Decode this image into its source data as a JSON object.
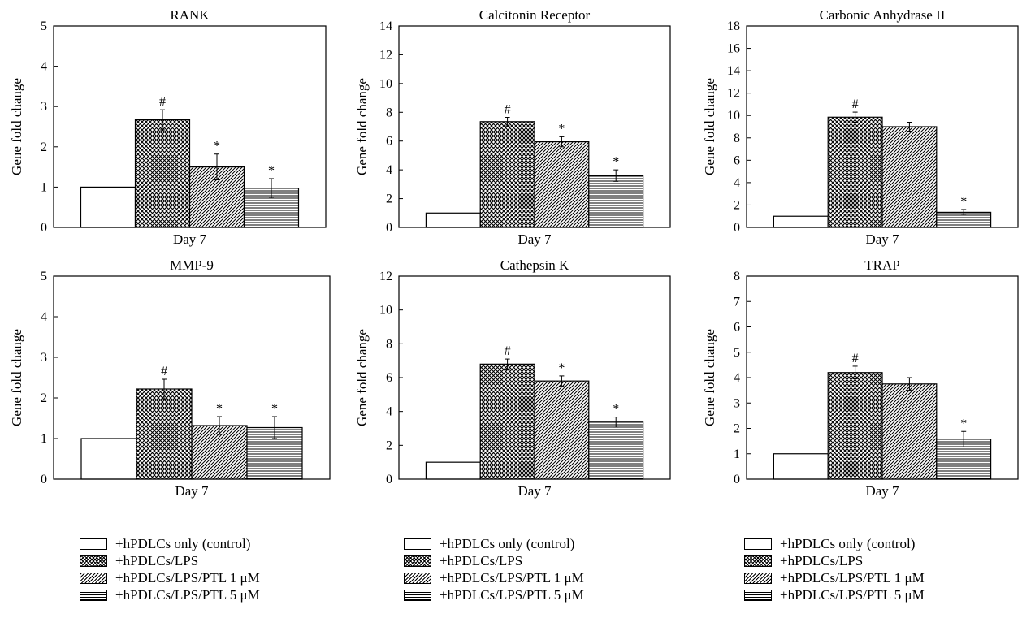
{
  "chart_data": [
    {
      "type": "bar",
      "title": "RANK",
      "xlabel": "Day 7",
      "ylabel": "Gene fold change",
      "ylim": [
        0,
        5
      ],
      "yticks": [
        "0",
        "1",
        "2",
        "3",
        "4",
        "5"
      ],
      "series": [
        {
          "name": "+hPDLCs only (control)",
          "values": [
            1.0
          ],
          "errors": [
            0
          ],
          "annotation": ""
        },
        {
          "name": "+hPDLCs/LPS",
          "values": [
            2.67
          ],
          "errors": [
            0.25
          ],
          "annotation": "#"
        },
        {
          "name": "+hPDLCs/LPS/PTL 1 μM",
          "values": [
            1.5
          ],
          "errors": [
            0.32
          ],
          "annotation": "*"
        },
        {
          "name": "+hPDLCs/LPS/PTL 5 μM",
          "values": [
            0.97
          ],
          "errors": [
            0.24
          ],
          "annotation": "*"
        }
      ]
    },
    {
      "type": "bar",
      "title": "Calcitonin Receptor",
      "xlabel": "Day 7",
      "ylabel": "Gene fold change",
      "ylim": [
        0,
        14
      ],
      "yticks": [
        "0",
        "2",
        "4",
        "6",
        "8",
        "10",
        "12",
        "14"
      ],
      "series": [
        {
          "name": "+hPDLCs only (control)",
          "values": [
            1.0
          ],
          "errors": [
            0
          ],
          "annotation": ""
        },
        {
          "name": "+hPDLCs/LPS",
          "values": [
            7.35
          ],
          "errors": [
            0.3
          ],
          "annotation": "#"
        },
        {
          "name": "+hPDLCs/LPS/PTL 1 μM",
          "values": [
            5.95
          ],
          "errors": [
            0.35
          ],
          "annotation": "*"
        },
        {
          "name": "+hPDLCs/LPS/PTL 5 μM",
          "values": [
            3.6
          ],
          "errors": [
            0.4
          ],
          "annotation": "*"
        }
      ]
    },
    {
      "type": "bar",
      "title": "Carbonic Anhydrase II",
      "xlabel": "Day 7",
      "ylabel": "Gene fold change",
      "ylim": [
        0,
        18
      ],
      "yticks": [
        "0",
        "2",
        "4",
        "6",
        "8",
        "10",
        "12",
        "14",
        "16",
        "18"
      ],
      "series": [
        {
          "name": "+hPDLCs only (control)",
          "values": [
            1.0
          ],
          "errors": [
            0
          ],
          "annotation": ""
        },
        {
          "name": "+hPDLCs/LPS",
          "values": [
            9.85
          ],
          "errors": [
            0.45
          ],
          "annotation": "#"
        },
        {
          "name": "+hPDLCs/LPS/PTL 1 μM",
          "values": [
            9.0
          ],
          "errors": [
            0.4
          ],
          "annotation": ""
        },
        {
          "name": "+hPDLCs/LPS/PTL 5 μM",
          "values": [
            1.35
          ],
          "errors": [
            0.25
          ],
          "annotation": "*"
        }
      ]
    },
    {
      "type": "bar",
      "title": "MMP-9",
      "xlabel": "Day 7",
      "ylabel": "Gene fold change",
      "ylim": [
        0,
        5
      ],
      "yticks": [
        "0",
        "1",
        "2",
        "3",
        "4",
        "5"
      ],
      "series": [
        {
          "name": "+hPDLCs only (control)",
          "values": [
            1.0
          ],
          "errors": [
            0
          ],
          "annotation": ""
        },
        {
          "name": "+hPDLCs/LPS",
          "values": [
            2.22
          ],
          "errors": [
            0.24
          ],
          "annotation": "#"
        },
        {
          "name": "+hPDLCs/LPS/PTL 1 μM",
          "values": [
            1.32
          ],
          "errors": [
            0.22
          ],
          "annotation": "*"
        },
        {
          "name": "+hPDLCs/LPS/PTL 5 μM",
          "values": [
            1.27
          ],
          "errors": [
            0.27
          ],
          "annotation": "*"
        }
      ]
    },
    {
      "type": "bar",
      "title": "Cathepsin K",
      "xlabel": "Day 7",
      "ylabel": "Gene fold change",
      "ylim": [
        0,
        12
      ],
      "yticks": [
        "0",
        "2",
        "4",
        "6",
        "8",
        "10",
        "12"
      ],
      "series": [
        {
          "name": "+hPDLCs only (control)",
          "values": [
            1.0
          ],
          "errors": [
            0
          ],
          "annotation": ""
        },
        {
          "name": "+hPDLCs/LPS",
          "values": [
            6.8
          ],
          "errors": [
            0.3
          ],
          "annotation": "#"
        },
        {
          "name": "+hPDLCs/LPS/PTL 1 μM",
          "values": [
            5.8
          ],
          "errors": [
            0.3
          ],
          "annotation": "*"
        },
        {
          "name": "+hPDLCs/LPS/PTL 5 μM",
          "values": [
            3.37
          ],
          "errors": [
            0.3
          ],
          "annotation": "*"
        }
      ]
    },
    {
      "type": "bar",
      "title": "TRAP",
      "xlabel": "Day 7",
      "ylabel": "Gene fold change",
      "ylim": [
        0,
        8
      ],
      "yticks": [
        "0",
        "1",
        "2",
        "3",
        "4",
        "5",
        "6",
        "7",
        "8"
      ],
      "series": [
        {
          "name": "+hPDLCs only (control)",
          "values": [
            1.0
          ],
          "errors": [
            0
          ],
          "annotation": ""
        },
        {
          "name": "+hPDLCs/LPS",
          "values": [
            4.2
          ],
          "errors": [
            0.25
          ],
          "annotation": "#"
        },
        {
          "name": "+hPDLCs/LPS/PTL 1 μM",
          "values": [
            3.75
          ],
          "errors": [
            0.25
          ],
          "annotation": ""
        },
        {
          "name": "+hPDLCs/LPS/PTL 5 μM",
          "values": [
            1.58
          ],
          "errors": [
            0.3
          ],
          "annotation": "*"
        }
      ]
    }
  ],
  "legend": {
    "items": [
      {
        "label": "+hPDLCs only (control)",
        "pattern": "plain"
      },
      {
        "label": "+hPDLCs/LPS",
        "pattern": "cross"
      },
      {
        "label": "+hPDLCs/LPS/PTL 1 μM",
        "pattern": "diag"
      },
      {
        "label": "+hPDLCs/LPS/PTL 5 μM",
        "pattern": "horiz"
      }
    ]
  }
}
